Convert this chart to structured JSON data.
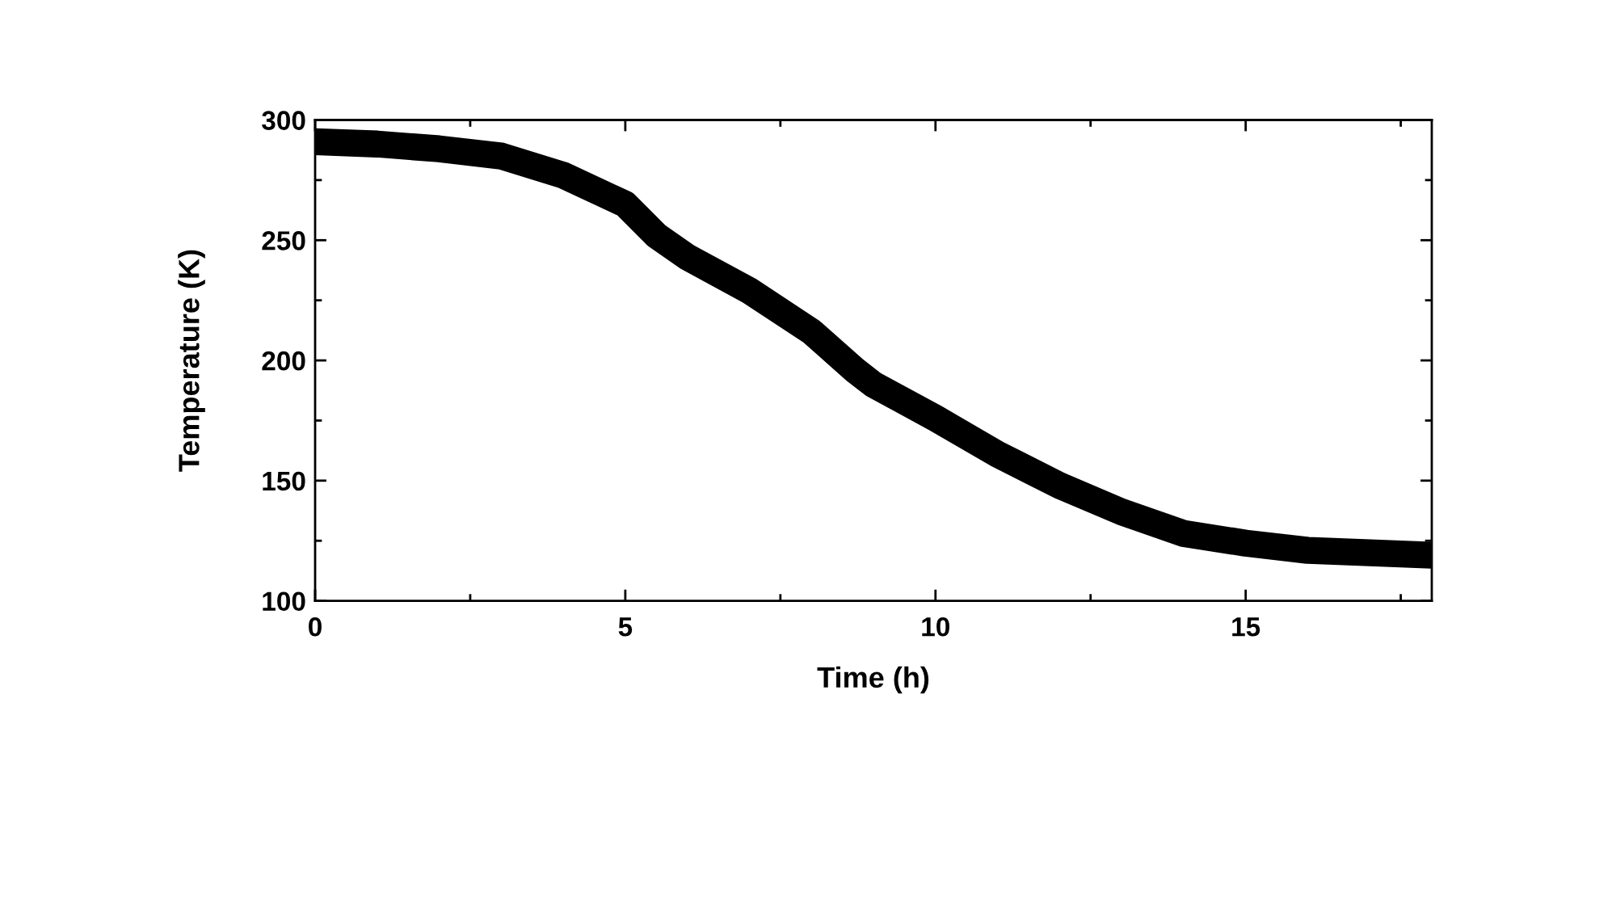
{
  "chart_data": {
    "type": "line",
    "xlabel": "Time (h)",
    "ylabel": "Temperature (K)",
    "x": [
      0,
      1,
      2,
      3,
      4,
      5,
      5.5,
      6,
      7,
      8,
      8.7,
      9,
      10,
      11,
      12,
      13,
      14,
      15,
      16,
      17,
      18
    ],
    "series": [
      {
        "color": "#000000",
        "values": [
          291,
          290,
          288,
          285,
          277,
          265,
          252,
          243,
          229,
          212,
          196,
          190,
          176,
          161,
          148,
          137,
          128,
          124,
          121,
          120,
          119
        ]
      }
    ],
    "xlim": [
      0,
      18
    ],
    "ylim": [
      100,
      300
    ],
    "xticks": [
      0,
      5,
      10,
      15
    ],
    "yticks": [
      100,
      150,
      200,
      250,
      300
    ],
    "grid": false,
    "legend": false,
    "line_style": "solid"
  }
}
